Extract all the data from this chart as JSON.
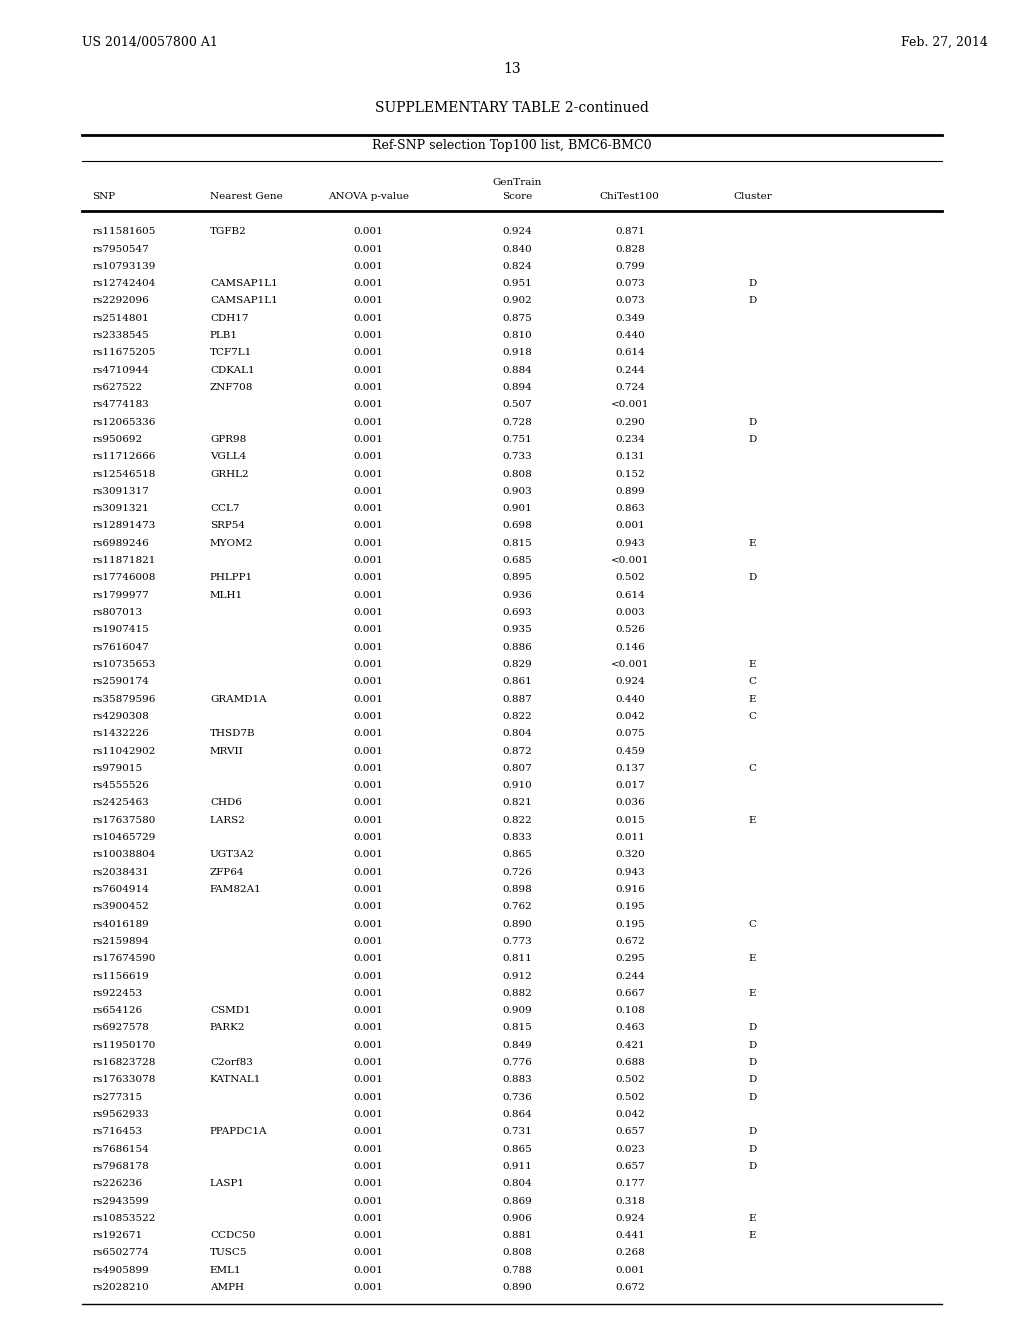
{
  "header_left": "US 2014/0057800 A1",
  "header_right": "Feb. 27, 2014",
  "page_number": "13",
  "table_title": "SUPPLEMENTARY TABLE 2-continued",
  "table_subtitle": "Ref-SNP selection Top100 list, BMC6-BMC0",
  "col_headers": [
    "SNP",
    "Nearest Gene",
    "ANOVA p-value",
    "GenTrain\nScore",
    "ChiTest100",
    "Cluster"
  ],
  "rows": [
    [
      "rs11581605",
      "TGFB2",
      "0.001",
      "0.924",
      "0.871",
      ""
    ],
    [
      "rs7950547",
      "",
      "0.001",
      "0.840",
      "0.828",
      ""
    ],
    [
      "rs10793139",
      "",
      "0.001",
      "0.824",
      "0.799",
      ""
    ],
    [
      "rs12742404",
      "CAMSAP1L1",
      "0.001",
      "0.951",
      "0.073",
      "D"
    ],
    [
      "rs2292096",
      "CAMSAP1L1",
      "0.001",
      "0.902",
      "0.073",
      "D"
    ],
    [
      "rs2514801",
      "CDH17",
      "0.001",
      "0.875",
      "0.349",
      ""
    ],
    [
      "rs2338545",
      "PLB1",
      "0.001",
      "0.810",
      "0.440",
      ""
    ],
    [
      "rs11675205",
      "TCF7L1",
      "0.001",
      "0.918",
      "0.614",
      ""
    ],
    [
      "rs4710944",
      "CDKAL1",
      "0.001",
      "0.884",
      "0.244",
      ""
    ],
    [
      "rs627522",
      "ZNF708",
      "0.001",
      "0.894",
      "0.724",
      ""
    ],
    [
      "rs4774183",
      "",
      "0.001",
      "0.507",
      "<0.001",
      ""
    ],
    [
      "rs12065336",
      "",
      "0.001",
      "0.728",
      "0.290",
      "D"
    ],
    [
      "rs950692",
      "GPR98",
      "0.001",
      "0.751",
      "0.234",
      "D"
    ],
    [
      "rs11712666",
      "VGLL4",
      "0.001",
      "0.733",
      "0.131",
      ""
    ],
    [
      "rs12546518",
      "GRHL2",
      "0.001",
      "0.808",
      "0.152",
      ""
    ],
    [
      "rs3091317",
      "",
      "0.001",
      "0.903",
      "0.899",
      ""
    ],
    [
      "rs3091321",
      "CCL7",
      "0.001",
      "0.901",
      "0.863",
      ""
    ],
    [
      "rs12891473",
      "SRP54",
      "0.001",
      "0.698",
      "0.001",
      ""
    ],
    [
      "rs6989246",
      "MYOM2",
      "0.001",
      "0.815",
      "0.943",
      "E"
    ],
    [
      "rs11871821",
      "",
      "0.001",
      "0.685",
      "<0.001",
      ""
    ],
    [
      "rs17746008",
      "PHLPP1",
      "0.001",
      "0.895",
      "0.502",
      "D"
    ],
    [
      "rs1799977",
      "MLH1",
      "0.001",
      "0.936",
      "0.614",
      ""
    ],
    [
      "rs807013",
      "",
      "0.001",
      "0.693",
      "0.003",
      ""
    ],
    [
      "rs1907415",
      "",
      "0.001",
      "0.935",
      "0.526",
      ""
    ],
    [
      "rs7616047",
      "",
      "0.001",
      "0.886",
      "0.146",
      ""
    ],
    [
      "rs10735653",
      "",
      "0.001",
      "0.829",
      "<0.001",
      "E"
    ],
    [
      "rs2590174",
      "",
      "0.001",
      "0.861",
      "0.924",
      "C"
    ],
    [
      "rs35879596",
      "GRAMD1A",
      "0.001",
      "0.887",
      "0.440",
      "E"
    ],
    [
      "rs4290308",
      "",
      "0.001",
      "0.822",
      "0.042",
      "C"
    ],
    [
      "rs1432226",
      "THSD7B",
      "0.001",
      "0.804",
      "0.075",
      ""
    ],
    [
      "rs11042902",
      "MRVII",
      "0.001",
      "0.872",
      "0.459",
      ""
    ],
    [
      "rs979015",
      "",
      "0.001",
      "0.807",
      "0.137",
      "C"
    ],
    [
      "rs4555526",
      "",
      "0.001",
      "0.910",
      "0.017",
      ""
    ],
    [
      "rs2425463",
      "CHD6",
      "0.001",
      "0.821",
      "0.036",
      ""
    ],
    [
      "rs17637580",
      "LARS2",
      "0.001",
      "0.822",
      "0.015",
      "E"
    ],
    [
      "rs10465729",
      "",
      "0.001",
      "0.833",
      "0.011",
      ""
    ],
    [
      "rs10038804",
      "UGT3A2",
      "0.001",
      "0.865",
      "0.320",
      ""
    ],
    [
      "rs2038431",
      "ZFP64",
      "0.001",
      "0.726",
      "0.943",
      ""
    ],
    [
      "rs7604914",
      "FAM82A1",
      "0.001",
      "0.898",
      "0.916",
      ""
    ],
    [
      "rs3900452",
      "",
      "0.001",
      "0.762",
      "0.195",
      ""
    ],
    [
      "rs4016189",
      "",
      "0.001",
      "0.890",
      "0.195",
      "C"
    ],
    [
      "rs2159894",
      "",
      "0.001",
      "0.773",
      "0.672",
      ""
    ],
    [
      "rs17674590",
      "",
      "0.001",
      "0.811",
      "0.295",
      "E"
    ],
    [
      "rs1156619",
      "",
      "0.001",
      "0.912",
      "0.244",
      ""
    ],
    [
      "rs922453",
      "",
      "0.001",
      "0.882",
      "0.667",
      "E"
    ],
    [
      "rs654126",
      "CSMD1",
      "0.001",
      "0.909",
      "0.108",
      ""
    ],
    [
      "rs6927578",
      "PARK2",
      "0.001",
      "0.815",
      "0.463",
      "D"
    ],
    [
      "rs11950170",
      "",
      "0.001",
      "0.849",
      "0.421",
      "D"
    ],
    [
      "rs16823728",
      "C2orf83",
      "0.001",
      "0.776",
      "0.688",
      "D"
    ],
    [
      "rs17633078",
      "KATNAL1",
      "0.001",
      "0.883",
      "0.502",
      "D"
    ],
    [
      "rs277315",
      "",
      "0.001",
      "0.736",
      "0.502",
      "D"
    ],
    [
      "rs9562933",
      "",
      "0.001",
      "0.864",
      "0.042",
      ""
    ],
    [
      "rs716453",
      "PPAPDC1A",
      "0.001",
      "0.731",
      "0.657",
      "D"
    ],
    [
      "rs7686154",
      "",
      "0.001",
      "0.865",
      "0.023",
      "D"
    ],
    [
      "rs7968178",
      "",
      "0.001",
      "0.911",
      "0.657",
      "D"
    ],
    [
      "rs226236",
      "LASP1",
      "0.001",
      "0.804",
      "0.177",
      ""
    ],
    [
      "rs2943599",
      "",
      "0.001",
      "0.869",
      "0.318",
      ""
    ],
    [
      "rs10853522",
      "",
      "0.001",
      "0.906",
      "0.924",
      "E"
    ],
    [
      "rs192671",
      "CCDC50",
      "0.001",
      "0.881",
      "0.441",
      "E"
    ],
    [
      "rs6502774",
      "TUSC5",
      "0.001",
      "0.808",
      "0.268",
      ""
    ],
    [
      "rs4905899",
      "EML1",
      "0.001",
      "0.788",
      "0.001",
      ""
    ],
    [
      "rs2028210",
      "AMPH",
      "0.001",
      "0.890",
      "0.672",
      ""
    ]
  ],
  "background_color": "#ffffff",
  "text_color": "#000000",
  "font_size": 7.5,
  "header_font_size": 7.5
}
